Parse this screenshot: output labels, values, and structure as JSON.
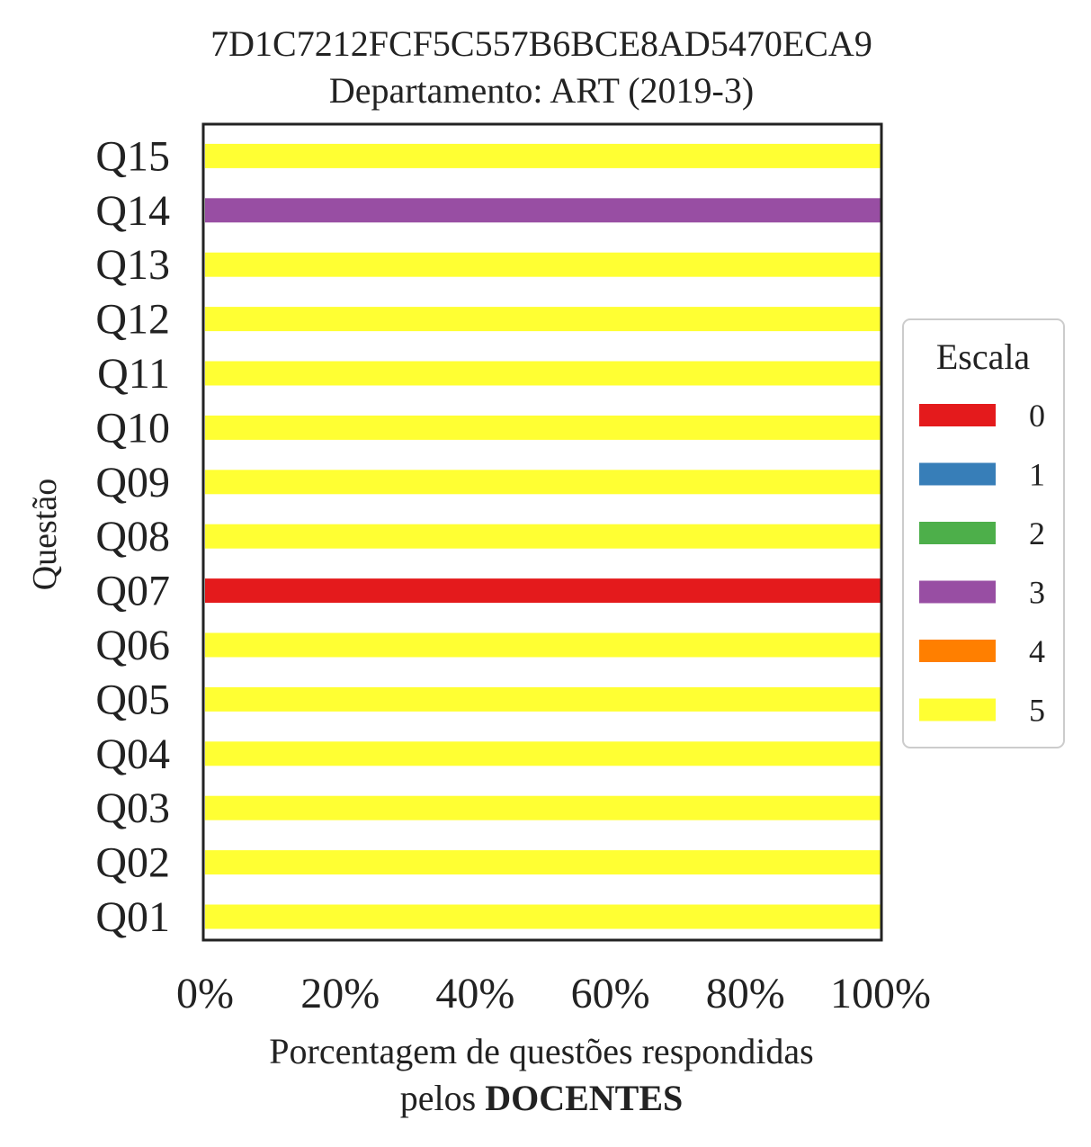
{
  "chart_data": {
    "type": "bar",
    "orientation": "horizontal",
    "stacked": true,
    "title": "7D1C7212FCF5C557B6BCE8AD5470ECA9",
    "subtitle": "Departamento: ART (2019-3)",
    "ylabel": "Questão",
    "xlabel_line1": "Porcentagem de questões respondidas",
    "xlabel_line2_prefix": "pelos ",
    "xlabel_line2_bold": "DOCENTES",
    "xlim": [
      0,
      100
    ],
    "xticks": [
      "0%",
      "20%",
      "40%",
      "60%",
      "80%",
      "100%"
    ],
    "categories": [
      "Q01",
      "Q02",
      "Q03",
      "Q04",
      "Q05",
      "Q06",
      "Q07",
      "Q08",
      "Q09",
      "Q10",
      "Q11",
      "Q12",
      "Q13",
      "Q14",
      "Q15"
    ],
    "legend": {
      "title": "Escala",
      "placement": "center-right outside"
    },
    "series": [
      {
        "name": "0",
        "color": "#e41a1c",
        "values": [
          0,
          0,
          0,
          0,
          0,
          0,
          100,
          0,
          0,
          0,
          0,
          0,
          0,
          0,
          0
        ]
      },
      {
        "name": "1",
        "color": "#377eb8",
        "values": [
          0,
          0,
          0,
          0,
          0,
          0,
          0,
          0,
          0,
          0,
          0,
          0,
          0,
          0,
          0
        ]
      },
      {
        "name": "2",
        "color": "#4daf4a",
        "values": [
          0,
          0,
          0,
          0,
          0,
          0,
          0,
          0,
          0,
          0,
          0,
          0,
          0,
          0,
          0
        ]
      },
      {
        "name": "3",
        "color": "#984ea3",
        "values": [
          0,
          0,
          0,
          0,
          0,
          0,
          0,
          0,
          0,
          0,
          0,
          0,
          0,
          100,
          0
        ]
      },
      {
        "name": "4",
        "color": "#ff7f00",
        "values": [
          0,
          0,
          0,
          0,
          0,
          0,
          0,
          0,
          0,
          0,
          0,
          0,
          0,
          0,
          0
        ]
      },
      {
        "name": "5",
        "color": "#ffff33",
        "values": [
          100,
          100,
          100,
          100,
          100,
          100,
          0,
          100,
          100,
          100,
          100,
          100,
          100,
          0,
          100
        ]
      }
    ]
  }
}
